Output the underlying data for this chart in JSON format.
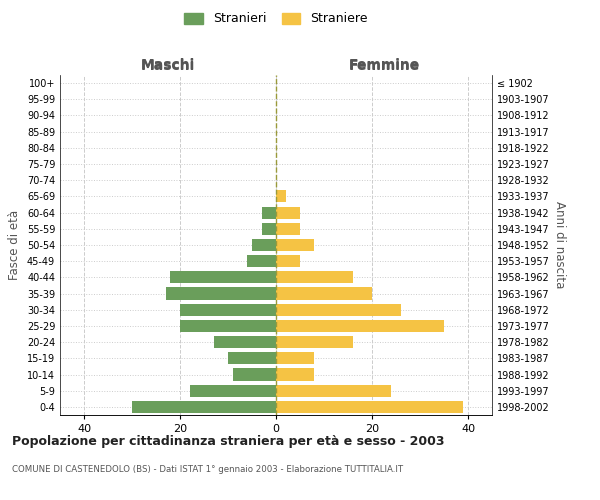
{
  "age_groups_bottom_to_top": [
    "0-4",
    "5-9",
    "10-14",
    "15-19",
    "20-24",
    "25-29",
    "30-34",
    "35-39",
    "40-44",
    "45-49",
    "50-54",
    "55-59",
    "60-64",
    "65-69",
    "70-74",
    "75-79",
    "80-84",
    "85-89",
    "90-94",
    "95-99",
    "100+"
  ],
  "birth_years_bottom_to_top": [
    "1998-2002",
    "1993-1997",
    "1988-1992",
    "1983-1987",
    "1978-1982",
    "1973-1977",
    "1968-1972",
    "1963-1967",
    "1958-1962",
    "1953-1957",
    "1948-1952",
    "1943-1947",
    "1938-1942",
    "1933-1937",
    "1928-1932",
    "1923-1927",
    "1918-1922",
    "1913-1917",
    "1908-1912",
    "1903-1907",
    "≤ 1902"
  ],
  "maschi_bottom_to_top": [
    30,
    18,
    9,
    10,
    13,
    20,
    20,
    23,
    22,
    6,
    5,
    3,
    3,
    0,
    0,
    0,
    0,
    0,
    0,
    0,
    0
  ],
  "femmine_bottom_to_top": [
    39,
    24,
    8,
    8,
    16,
    35,
    26,
    20,
    16,
    5,
    8,
    5,
    5,
    2,
    0,
    0,
    0,
    0,
    0,
    0,
    0
  ],
  "maschi_color": "#6a9e5b",
  "femmine_color": "#f5c344",
  "center_line_color": "#9a9a3a",
  "grid_color": "#cccccc",
  "title": "Popolazione per cittadinanza straniera per età e sesso - 2003",
  "subtitle": "COMUNE DI CASTENEDOLO (BS) - Dati ISTAT 1° gennaio 2003 - Elaborazione TUTTITALIA.IT",
  "xlabel_left": "Maschi",
  "xlabel_right": "Femmine",
  "ylabel_left": "Fasce di età",
  "ylabel_right": "Anni di nascita",
  "legend_maschi": "Stranieri",
  "legend_femmine": "Straniere",
  "xlim": 45,
  "background_color": "#ffffff",
  "bar_height": 0.75
}
